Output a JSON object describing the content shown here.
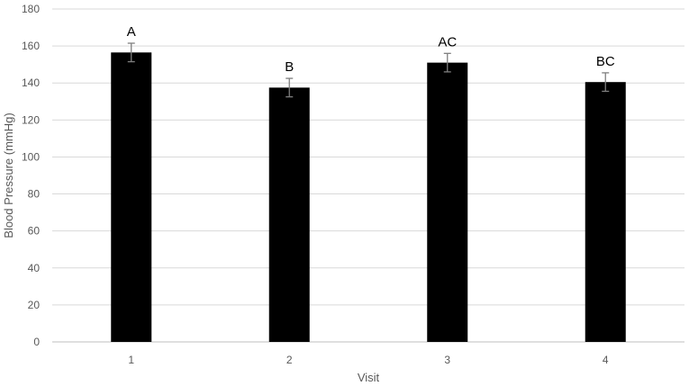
{
  "chart_data": {
    "type": "bar",
    "title": "",
    "xlabel": "Visit",
    "ylabel": "Blood Pressure (mmHg)",
    "ylim": [
      0,
      180
    ],
    "yticks": [
      0,
      20,
      40,
      60,
      80,
      100,
      120,
      140,
      160,
      180
    ],
    "categories": [
      "1",
      "2",
      "3",
      "4"
    ],
    "values": [
      156.5,
      137.5,
      151,
      140.5
    ],
    "errors": [
      5,
      5,
      5,
      5
    ],
    "significance_labels": [
      "A",
      "B",
      "AC",
      "BC"
    ],
    "grid": true,
    "legend": "none",
    "bar_color": "#000000",
    "gridline_color": "#d9d9d9",
    "error_bar_color": "#7f7f7f"
  }
}
